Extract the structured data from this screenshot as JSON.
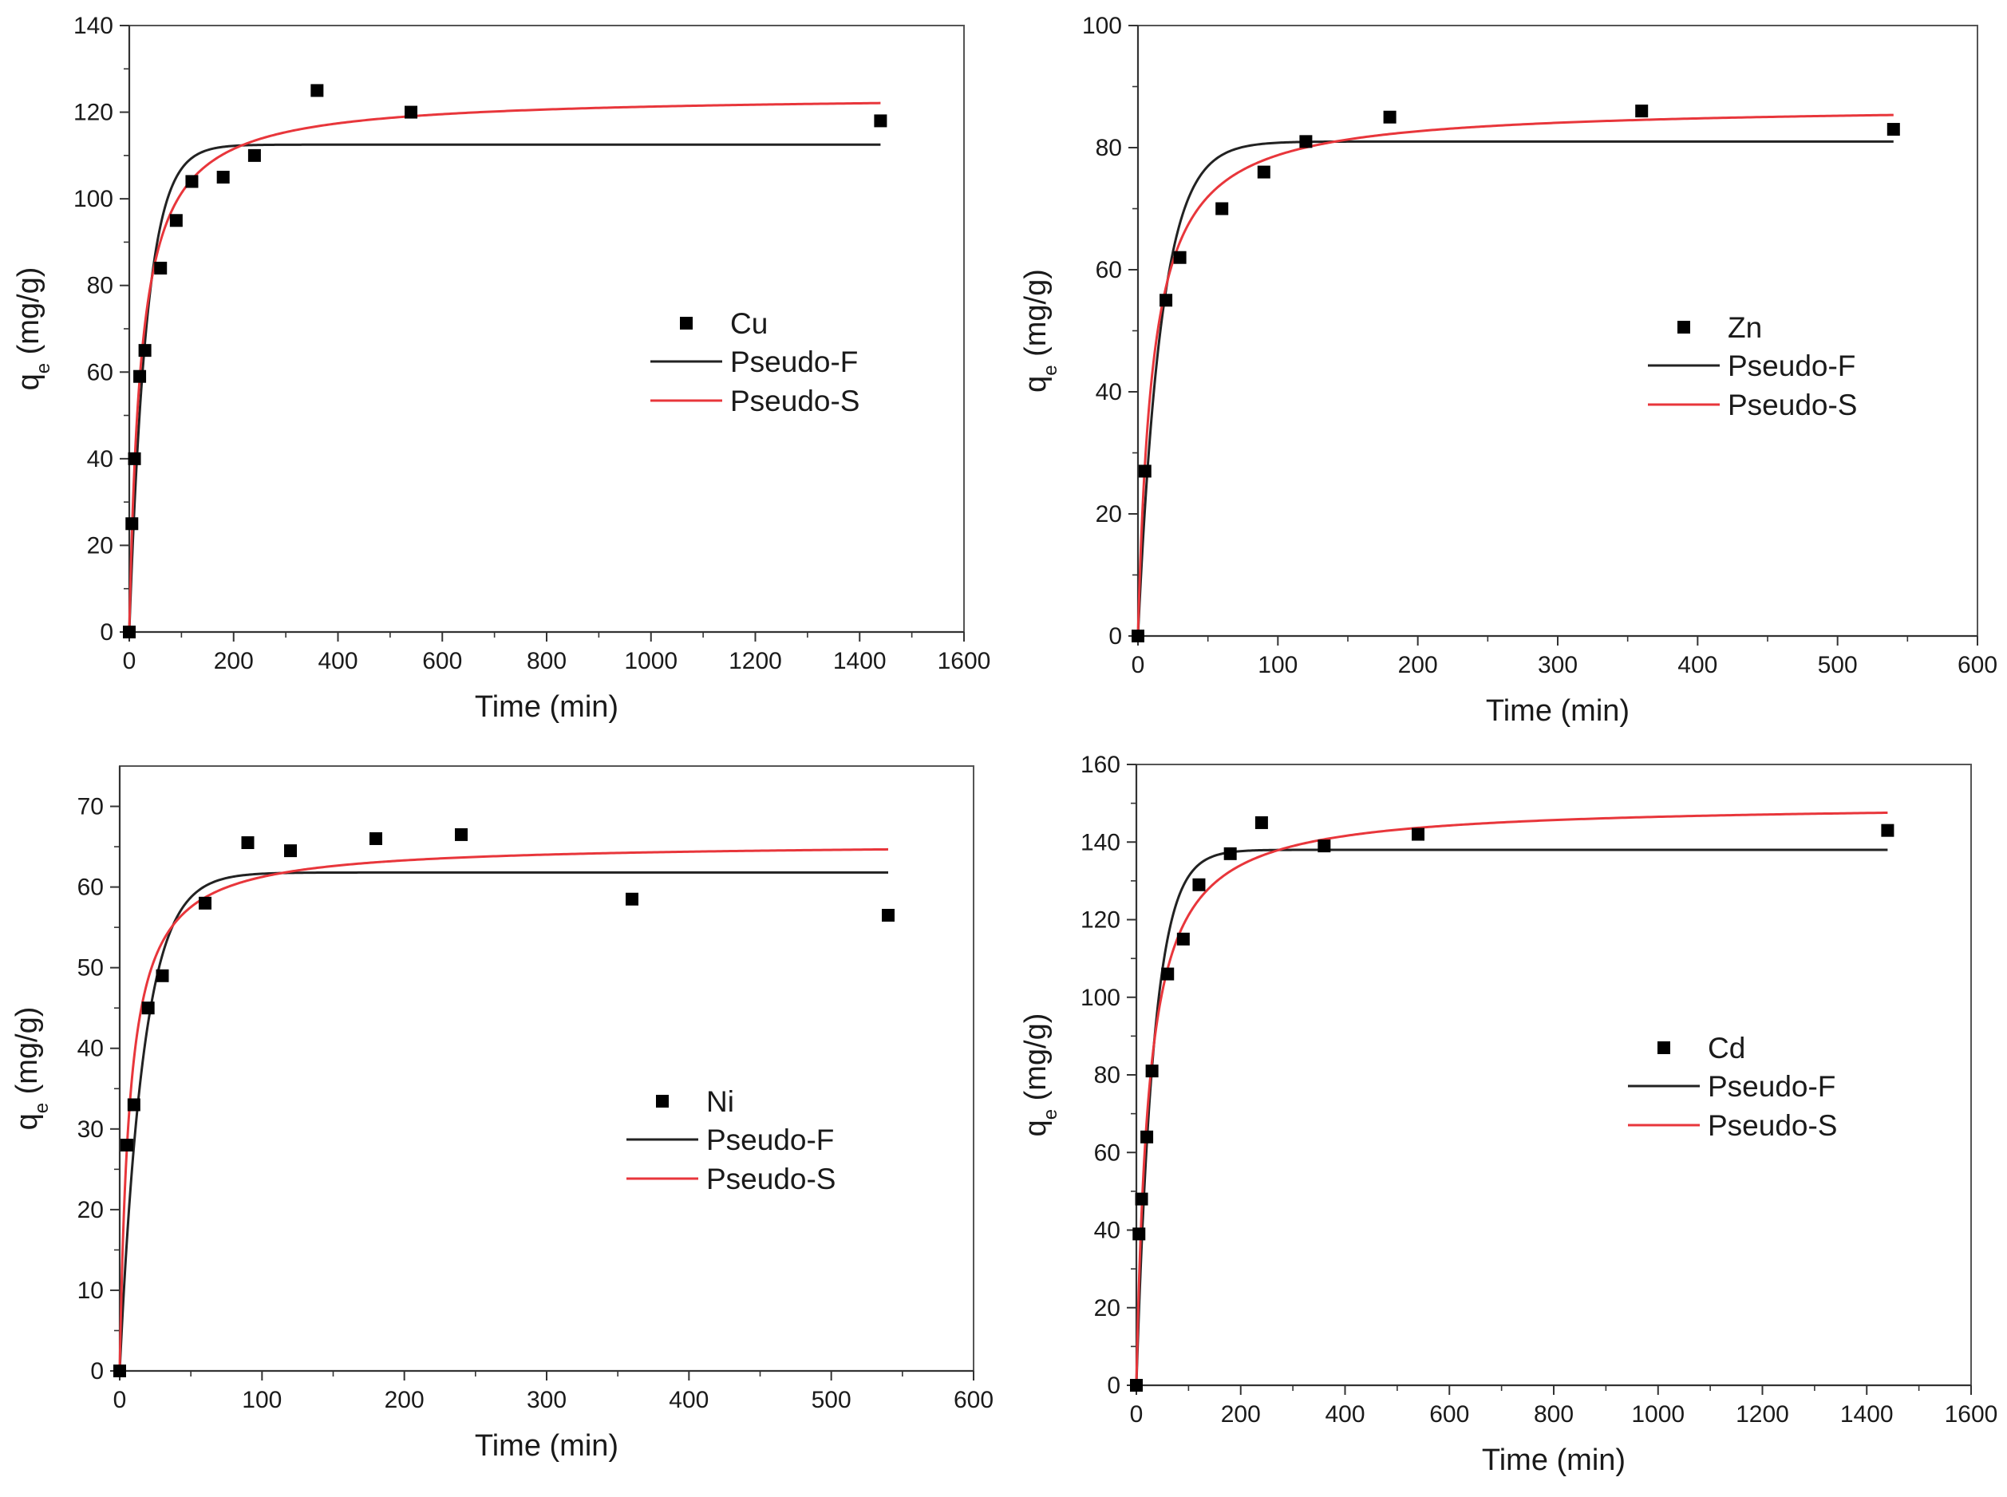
{
  "colors": {
    "pseudo_f": "#222222",
    "pseudo_s": "#e8363b",
    "marker": "#000000"
  },
  "chart_data": [
    {
      "type": "scatter",
      "metal": "Cu",
      "xlabel": "Time (min)",
      "ylabel": "q",
      "ylabel_sub": "e",
      "ylabel_unit": " (mg/g)",
      "xlim": [
        0,
        1600
      ],
      "ylim": [
        0,
        140
      ],
      "xticks": [
        0,
        200,
        400,
        600,
        800,
        1000,
        1200,
        1400,
        1600
      ],
      "yticks": [
        0,
        20,
        40,
        60,
        80,
        100,
        120,
        140
      ],
      "legend": [
        "Cu",
        "Pseudo-F",
        "Pseudo-S"
      ],
      "legend_position": "center-right",
      "points": {
        "x": [
          0,
          5,
          10,
          20,
          30,
          60,
          90,
          120,
          180,
          240,
          360,
          540,
          1440
        ],
        "y": [
          0,
          25,
          40,
          59,
          65,
          84,
          95,
          104,
          105,
          110,
          125,
          120,
          118
        ]
      },
      "pseudo_f": {
        "qe": 112.5,
        "k1": 0.03,
        "x_end": 1440
      },
      "pseudo_s": {
        "qe": 124,
        "k2": 0.00036,
        "x_end": 1440
      }
    },
    {
      "type": "scatter",
      "metal": "Zn",
      "xlabel": "Time (min)",
      "ylabel": "q",
      "ylabel_sub": "e",
      "ylabel_unit": " (mg/g)",
      "xlim": [
        0,
        600
      ],
      "ylim": [
        0,
        100
      ],
      "xticks": [
        0,
        100,
        200,
        300,
        400,
        500,
        600
      ],
      "yticks": [
        0,
        20,
        40,
        60,
        80,
        100
      ],
      "legend": [
        "Zn",
        "Pseudo-F",
        "Pseudo-S"
      ],
      "legend_position": "center-right",
      "points": {
        "x": [
          0,
          5,
          20,
          30,
          60,
          90,
          120,
          180,
          360,
          540
        ],
        "y": [
          0,
          27,
          55,
          62,
          70,
          76,
          81,
          85,
          86,
          83
        ]
      },
      "pseudo_f": {
        "qe": 81,
        "k1": 0.06,
        "x_end": 540
      },
      "pseudo_s": {
        "qe": 87,
        "k2": 0.0011,
        "x_end": 540
      }
    },
    {
      "type": "scatter",
      "metal": "Ni",
      "xlabel": "Time (min)",
      "ylabel": "q",
      "ylabel_sub": "e",
      "ylabel_unit": " (mg/g)",
      "xlim": [
        0,
        600
      ],
      "ylim": [
        0,
        75
      ],
      "xticks": [
        0,
        100,
        200,
        300,
        400,
        500,
        600
      ],
      "yticks": [
        0,
        10,
        20,
        30,
        40,
        50,
        60,
        70
      ],
      "legend": [
        "Ni",
        "Pseudo-F",
        "Pseudo-S"
      ],
      "legend_position": "center-right",
      "points": {
        "x": [
          0,
          5,
          10,
          20,
          30,
          60,
          90,
          120,
          180,
          240,
          360,
          540
        ],
        "y": [
          0,
          28,
          33,
          45,
          49,
          58,
          65.5,
          64.5,
          66,
          66.5,
          58.5,
          56.5
        ]
      },
      "pseudo_f": {
        "qe": 61.8,
        "k1": 0.06,
        "x_end": 540
      },
      "pseudo_s": {
        "qe": 65.5,
        "k2": 0.0022,
        "x_end": 540
      }
    },
    {
      "type": "scatter",
      "metal": "Cd",
      "xlabel": "Time (min)",
      "ylabel": "q",
      "ylabel_sub": "e",
      "ylabel_unit": " (mg/g)",
      "xlim": [
        0,
        1600
      ],
      "ylim": [
        0,
        160
      ],
      "xticks": [
        0,
        200,
        400,
        600,
        800,
        1000,
        1200,
        1400,
        1600
      ],
      "yticks": [
        0,
        20,
        40,
        60,
        80,
        100,
        120,
        140,
        160
      ],
      "legend": [
        "Cd",
        "Pseudo-F",
        "Pseudo-S"
      ],
      "legend_position": "center-right",
      "points": {
        "x": [
          0,
          5,
          10,
          20,
          30,
          60,
          90,
          120,
          180,
          240,
          360,
          540,
          1440
        ],
        "y": [
          0,
          39,
          48,
          64,
          81,
          106,
          115,
          129,
          137,
          145,
          139,
          142,
          143
        ]
      },
      "pseudo_f": {
        "qe": 138,
        "k1": 0.03,
        "x_end": 1440
      },
      "pseudo_s": {
        "qe": 150,
        "k2": 0.00028,
        "x_end": 1440
      }
    }
  ]
}
